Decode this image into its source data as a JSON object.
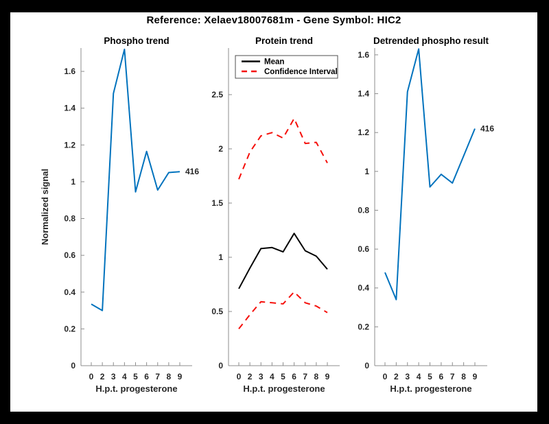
{
  "figure_title": "Reference:  Xelaev18007681m - Gene Symbol:  HIC2",
  "colors": {
    "blue_line": "#0072BD",
    "red_dashed": "#f50f0a",
    "black_line": "#000000",
    "axis": "#8c8c8c",
    "text": "#262626"
  },
  "chart_data": [
    {
      "type": "line",
      "title": "Phospho trend",
      "xlabel": "H.p.t. progesterone",
      "ylabel": "Normalized signal",
      "x_tick_labels": [
        "0",
        "2",
        "3",
        "4",
        "5",
        "6",
        "7",
        "8",
        "9"
      ],
      "y_ticks": [
        0,
        0.2,
        0.4,
        0.6,
        0.8,
        1,
        1.2,
        1.4,
        1.6
      ],
      "y_tick_labels": [
        "0",
        "0.2",
        "0.4",
        "0.6",
        "0.8",
        "1",
        "1.2",
        "1.4",
        "1.6"
      ],
      "ylim": [
        0,
        1.727
      ],
      "grid": false,
      "series": [
        {
          "name": "phospho",
          "color": "#0072BD",
          "dash": "",
          "width": 2,
          "values": [
            0.335,
            0.3,
            1.48,
            1.72,
            0.945,
            1.165,
            0.955,
            1.05,
            1.055
          ]
        }
      ],
      "end_label": "416"
    },
    {
      "type": "line",
      "title": "Protein trend",
      "xlabel": "H.p.t. progesterone",
      "ylabel": "",
      "x_tick_labels": [
        "0",
        "2",
        "3",
        "4",
        "5",
        "6",
        "7",
        "8",
        "9"
      ],
      "y_ticks": [
        0,
        0.5,
        1,
        1.5,
        2,
        2.5
      ],
      "y_tick_labels": [
        "0",
        "0.5",
        "1",
        "1.5",
        "2",
        "2.5"
      ],
      "ylim": [
        0,
        2.93
      ],
      "grid": false,
      "legend": {
        "position": "northwest",
        "entries": [
          {
            "label": "Mean",
            "color": "#000000",
            "dash": ""
          },
          {
            "label": "Confidence Interval",
            "color": "#f50f0a",
            "dash": "8 6"
          }
        ]
      },
      "series": [
        {
          "name": "ci-upper",
          "color": "#f50f0a",
          "dash": "9 7",
          "width": 2,
          "values": [
            1.72,
            1.97,
            2.12,
            2.15,
            2.1,
            2.28,
            2.05,
            2.06,
            1.87
          ]
        },
        {
          "name": "mean",
          "color": "#000000",
          "dash": "",
          "width": 2,
          "values": [
            0.71,
            0.9,
            1.08,
            1.09,
            1.05,
            1.22,
            1.06,
            1.01,
            0.89
          ]
        },
        {
          "name": "ci-lower",
          "color": "#f50f0a",
          "dash": "9 7",
          "width": 2,
          "values": [
            0.34,
            0.47,
            0.59,
            0.58,
            0.57,
            0.68,
            0.58,
            0.55,
            0.49
          ]
        }
      ],
      "end_label": ""
    },
    {
      "type": "line",
      "title": "Detrended phospho result",
      "xlabel": "H.p.t. progesterone",
      "ylabel": "",
      "x_tick_labels": [
        "0",
        "2",
        "3",
        "4",
        "5",
        "6",
        "7",
        "8",
        "9"
      ],
      "y_ticks": [
        0,
        0.2,
        0.4,
        0.6,
        0.8,
        1,
        1.2,
        1.4,
        1.6
      ],
      "y_tick_labels": [
        "0",
        "0.2",
        "0.4",
        "0.6",
        "0.8",
        "1",
        "1.2",
        "1.4",
        "1.6"
      ],
      "ylim": [
        0,
        1.635
      ],
      "grid": false,
      "series": [
        {
          "name": "detrended-phospho",
          "color": "#0072BD",
          "dash": "",
          "width": 2,
          "values": [
            0.48,
            0.34,
            1.41,
            1.63,
            0.92,
            0.985,
            0.94,
            1.08,
            1.22
          ]
        }
      ],
      "end_label": "416"
    }
  ]
}
